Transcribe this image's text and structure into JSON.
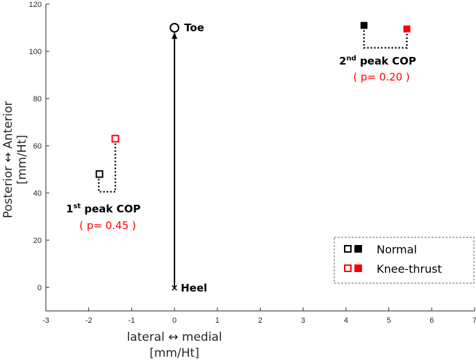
{
  "chart_data": {
    "type": "scatter",
    "xlim": [
      -3,
      7
    ],
    "ylim": [
      -10,
      120
    ],
    "xticks": [
      "-3",
      "-2",
      "-1",
      "0",
      "1",
      "2",
      "3",
      "4",
      "5",
      "6",
      "7"
    ],
    "yticks": [
      "0",
      "20",
      "40",
      "60",
      "80",
      "100",
      "120"
    ],
    "xlabel_line1": "lateral ↔ medial",
    "xlabel_line2": "[mm/Ht]",
    "ylabel_line1": "Posterior ↔ Anterior",
    "ylabel_line2": "[mm/Ht]",
    "grid": false,
    "legend_position": "bottom-right",
    "series": [
      {
        "name": "Normal",
        "color": "#000000",
        "points": [
          {
            "x": -1.75,
            "y": 48,
            "group": "1st peak COP"
          },
          {
            "x": 4.42,
            "y": 111,
            "group": "2nd peak COP"
          }
        ]
      },
      {
        "name": "Knee-thrust",
        "color": "#ff0000",
        "points": [
          {
            "x": -1.38,
            "y": 63,
            "group": "1st peak COP"
          },
          {
            "x": 5.42,
            "y": 109.5,
            "group": "2nd peak COP"
          }
        ]
      }
    ],
    "reference_points": [
      {
        "label": "Toe",
        "x": 0,
        "y": 110
      },
      {
        "label": "Heel",
        "x": 0,
        "y": 0
      }
    ],
    "annotations": {
      "first": {
        "prefix": "1",
        "sup": "st",
        "rest": " peak COP",
        "p": "( p= 0.45 )"
      },
      "second": {
        "prefix": "2",
        "sup": "nd",
        "rest": " peak COP",
        "p": "( p= 0.20 )"
      }
    }
  },
  "legend": {
    "normal": "Normal",
    "knee_thrust": "Knee-thrust"
  }
}
